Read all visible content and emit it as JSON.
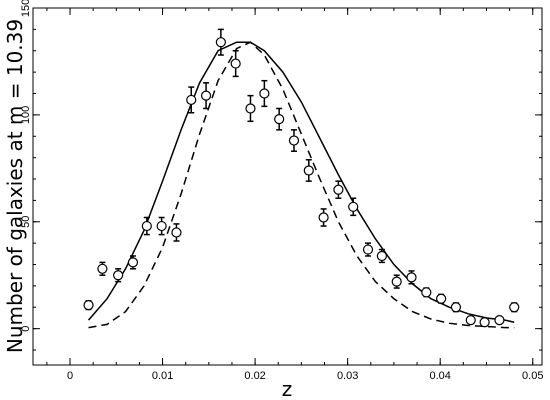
{
  "chart_data": {
    "type": "scatter",
    "title": "",
    "xlabel": "z",
    "ylabel": "Number of galaxies at m = 10.39",
    "xlim": [
      -0.004,
      0.051
    ],
    "ylim": [
      -17,
      150
    ],
    "xticks": [
      0,
      0.01,
      0.02,
      0.03,
      0.04,
      0.05
    ],
    "xtick_labels": [
      "0",
      "0.01",
      "0.02",
      "0.03",
      "0.04",
      "0.05"
    ],
    "yticks": [
      0,
      50,
      100,
      150
    ],
    "ytick_labels": [
      "0",
      "50",
      "100",
      "150"
    ],
    "grid": false,
    "legend": "none",
    "series": [
      {
        "style": "points-with-errorbars",
        "marker": "open-circle",
        "points": [
          {
            "x": 0.002,
            "y": 11,
            "err": 2
          },
          {
            "x": 0.0035,
            "y": 28,
            "err": 3
          },
          {
            "x": 0.0052,
            "y": 25,
            "err": 3
          },
          {
            "x": 0.0068,
            "y": 31,
            "err": 3
          },
          {
            "x": 0.0083,
            "y": 48,
            "err": 4
          },
          {
            "x": 0.0099,
            "y": 48,
            "err": 4
          },
          {
            "x": 0.0115,
            "y": 45,
            "err": 4
          },
          {
            "x": 0.0131,
            "y": 107,
            "err": 6
          },
          {
            "x": 0.0147,
            "y": 109,
            "err": 6
          },
          {
            "x": 0.0163,
            "y": 134,
            "err": 6
          },
          {
            "x": 0.0179,
            "y": 124,
            "err": 6
          },
          {
            "x": 0.0195,
            "y": 103,
            "err": 6
          },
          {
            "x": 0.021,
            "y": 110,
            "err": 6
          },
          {
            "x": 0.0226,
            "y": 98,
            "err": 5
          },
          {
            "x": 0.0242,
            "y": 88,
            "err": 5
          },
          {
            "x": 0.0258,
            "y": 74,
            "err": 5
          },
          {
            "x": 0.0274,
            "y": 52,
            "err": 4
          },
          {
            "x": 0.029,
            "y": 65,
            "err": 4
          },
          {
            "x": 0.0306,
            "y": 57,
            "err": 4
          },
          {
            "x": 0.0322,
            "y": 37,
            "err": 3
          },
          {
            "x": 0.0337,
            "y": 34,
            "err": 3
          },
          {
            "x": 0.0353,
            "y": 22,
            "err": 3
          },
          {
            "x": 0.0369,
            "y": 24,
            "err": 3
          },
          {
            "x": 0.0385,
            "y": 17,
            "err": 2
          },
          {
            "x": 0.0401,
            "y": 14,
            "err": 2
          },
          {
            "x": 0.0417,
            "y": 10,
            "err": 2
          },
          {
            "x": 0.0433,
            "y": 4,
            "err": 1.5
          },
          {
            "x": 0.0448,
            "y": 3,
            "err": 1.5
          },
          {
            "x": 0.0464,
            "y": 4,
            "err": 1.5
          },
          {
            "x": 0.048,
            "y": 10,
            "err": 2
          }
        ]
      },
      {
        "style": "solid-line",
        "x": [
          0.002,
          0.004,
          0.006,
          0.008,
          0.01,
          0.012,
          0.014,
          0.016,
          0.018,
          0.0195,
          0.021,
          0.023,
          0.025,
          0.027,
          0.029,
          0.031,
          0.033,
          0.035,
          0.037,
          0.039,
          0.041,
          0.043,
          0.045,
          0.047,
          0.048
        ],
        "y": [
          4,
          14,
          28,
          46,
          69,
          93,
          115,
          130,
          134,
          134,
          130,
          120,
          106,
          89,
          72,
          56,
          42,
          30,
          21,
          14,
          10,
          7,
          5,
          4,
          3
        ]
      },
      {
        "style": "dashed-line",
        "x": [
          0.002,
          0.004,
          0.006,
          0.008,
          0.01,
          0.012,
          0.014,
          0.016,
          0.018,
          0.0195,
          0.021,
          0.023,
          0.025,
          0.027,
          0.029,
          0.031,
          0.033,
          0.035,
          0.037,
          0.039,
          0.041,
          0.043,
          0.045,
          0.047,
          0.048
        ],
        "y": [
          0.5,
          2,
          8,
          20,
          38,
          63,
          91,
          116,
          131,
          134,
          128,
          112,
          91,
          70,
          50,
          34,
          22,
          14,
          8,
          4.5,
          2.5,
          1.5,
          1,
          0.5,
          0.5
        ]
      }
    ]
  }
}
